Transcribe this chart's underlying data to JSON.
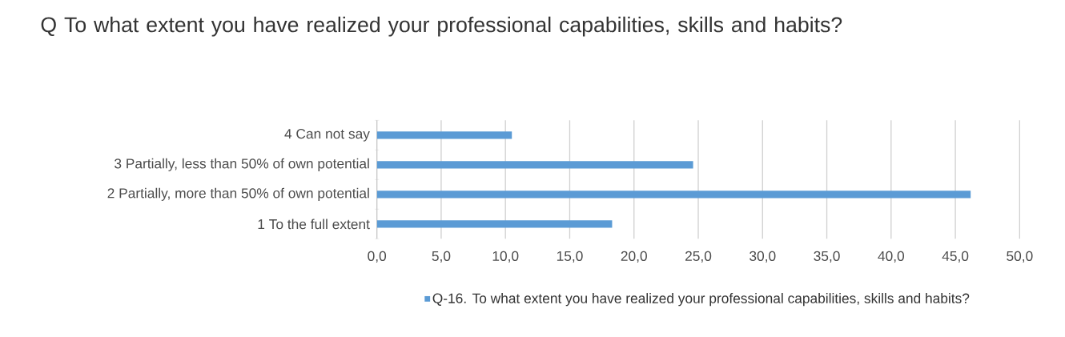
{
  "chart_data": {
    "type": "bar",
    "orientation": "horizontal",
    "title": "Q     To what extent you have realized your professional capabilities, skills and habits?",
    "categories": [
      "4 Can not say",
      "3 Partially, less than 50% of own potential",
      "2 Partially, more than 50% of own potential",
      "1 To the full extent"
    ],
    "series": [
      {
        "name": "Q-16.     To what extent you have realized your professional capabilities, skills and habits?",
        "color": "#5b9bd5",
        "values": [
          10.5,
          24.6,
          46.2,
          18.3
        ]
      }
    ],
    "xlim": [
      0,
      50
    ],
    "xticks": [
      {
        "value": 0,
        "label": "0,0"
      },
      {
        "value": 5,
        "label": "5,0"
      },
      {
        "value": 10,
        "label": "10,0"
      },
      {
        "value": 15,
        "label": "15,0"
      },
      {
        "value": 20,
        "label": "20,0"
      },
      {
        "value": 25,
        "label": "25,0"
      },
      {
        "value": 30,
        "label": "30,0"
      },
      {
        "value": 35,
        "label": "35,0"
      },
      {
        "value": 40,
        "label": "40,0"
      },
      {
        "value": 45,
        "label": "45,0"
      },
      {
        "value": 50,
        "label": "50,0"
      }
    ],
    "grid": "x",
    "legend": "bottom"
  }
}
